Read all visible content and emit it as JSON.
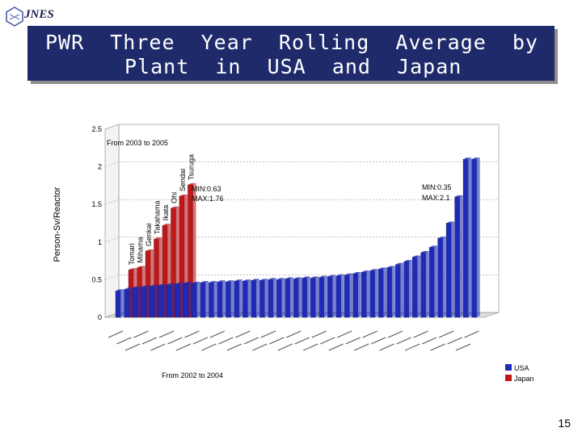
{
  "header": {
    "logo_text": "JNES",
    "title_line1": "PWR  Three  Year  Rolling  Average  by",
    "title_line2": "Plant  in  USA  and  Japan"
  },
  "page_number": "15",
  "colors": {
    "title_bg": "#1f2a6b",
    "usa": "#1d2bb8",
    "japan": "#c01818"
  },
  "chart_data": {
    "type": "bar",
    "ylabel": "Person-Sv/Reactor",
    "ylim": [
      0,
      2.5
    ],
    "y_ticks": [
      0,
      0.5,
      1,
      1.5,
      2,
      2.5
    ],
    "legend": {
      "position": "bottom-right",
      "entries": [
        "USA",
        "Japan"
      ]
    },
    "series": [
      {
        "name": "USA",
        "period_label": "From 2002 to 2004",
        "annotation": [
          "MIN:0.35",
          "MAX:2.1"
        ],
        "values": [
          0.35,
          0.37,
          0.39,
          0.4,
          0.41,
          0.42,
          0.43,
          0.44,
          0.45,
          0.45,
          0.46,
          0.46,
          0.47,
          0.47,
          0.48,
          0.48,
          0.49,
          0.49,
          0.5,
          0.5,
          0.51,
          0.51,
          0.52,
          0.52,
          0.53,
          0.54,
          0.55,
          0.56,
          0.58,
          0.6,
          0.62,
          0.64,
          0.66,
          0.7,
          0.74,
          0.8,
          0.86,
          0.93,
          1.05,
          1.25,
          1.6,
          2.1,
          2.1
        ]
      },
      {
        "name": "Japan",
        "period_label": "From 2003 to 2005",
        "annotation": [
          "MIN:0.63",
          "MAX:1.76"
        ],
        "plants": [
          "Tomari",
          "Mihama",
          "Genkai",
          "Takahama",
          "Ikata",
          "Ohi",
          "Sendai",
          "Tsuruga"
        ],
        "values": [
          0.63,
          0.66,
          0.88,
          1.04,
          1.22,
          1.45,
          1.61,
          1.76
        ]
      }
    ]
  }
}
